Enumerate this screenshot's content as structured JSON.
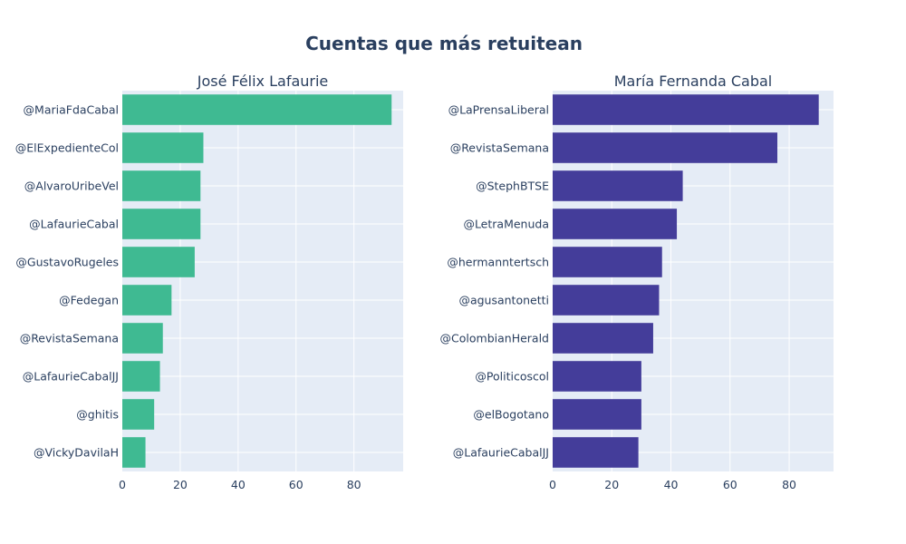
{
  "title": "Cuentas que más retuitean",
  "chart_data": [
    {
      "type": "bar",
      "orientation": "horizontal",
      "title": "José Félix Lafaurie",
      "color": "#3fba92",
      "xlim": [
        0,
        97
      ],
      "xticks": [
        0,
        20,
        40,
        60,
        80
      ],
      "grid": true,
      "categories": [
        "@MariaFdaCabal",
        "@ElExpedienteCol",
        "@AlvaroUribeVel",
        "@LafaurieCabal",
        "@GustavoRugeles",
        "@Fedegan",
        "@RevistaSemana",
        "@LafaurieCabalJJ",
        "@ghitis",
        "@VickyDavilaH"
      ],
      "values": [
        93,
        28,
        27,
        27,
        25,
        17,
        14,
        13,
        11,
        8
      ]
    },
    {
      "type": "bar",
      "orientation": "horizontal",
      "title": "María Fernanda Cabal",
      "color": "#443d9a",
      "xlim": [
        0,
        95
      ],
      "xticks": [
        0,
        20,
        40,
        60,
        80
      ],
      "grid": true,
      "categories": [
        "@LaPrensaLiberal",
        "@RevistaSemana",
        "@StephBTSE",
        "@LetraMenuda",
        "@hermanntertsch",
        "@agusantonetti",
        "@ColombianHerald",
        "@Politicoscol",
        "@elBogotano",
        "@LafaurieCabalJJ"
      ],
      "values": [
        90,
        76,
        44,
        42,
        37,
        36,
        34,
        30,
        30,
        29
      ]
    }
  ]
}
